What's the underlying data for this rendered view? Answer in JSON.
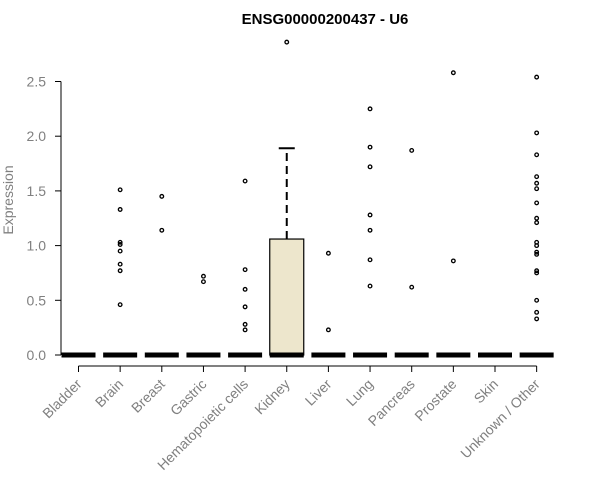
{
  "chart_data": {
    "type": "boxplot",
    "title": "ENSG00000200437 - U6",
    "xlabel": "",
    "ylabel": "Expression",
    "ylim": [
      0,
      2.75
    ],
    "yticks": [
      "0.0",
      "0.5",
      "1.0",
      "1.5",
      "2.0",
      "2.5"
    ],
    "ytick_values": [
      0.0,
      0.5,
      1.0,
      1.5,
      2.0,
      2.5
    ],
    "box_fill": "#ede6cc",
    "categories": [
      "Bladder",
      "Brain",
      "Breast",
      "Gastric",
      "Hematopoietic cells",
      "Kidney",
      "Liver",
      "Lung",
      "Pancreas",
      "Prostate",
      "Skin",
      "Unknown / Other"
    ],
    "boxes": [
      {
        "category": "Bladder",
        "q1": 0,
        "median": 0,
        "q3": 0,
        "whisker_low": 0,
        "whisker_high": 0
      },
      {
        "category": "Brain",
        "q1": 0,
        "median": 0,
        "q3": 0,
        "whisker_low": 0,
        "whisker_high": 0
      },
      {
        "category": "Breast",
        "q1": 0,
        "median": 0,
        "q3": 0,
        "whisker_low": 0,
        "whisker_high": 0
      },
      {
        "category": "Gastric",
        "q1": 0,
        "median": 0,
        "q3": 0,
        "whisker_low": 0,
        "whisker_high": 0
      },
      {
        "category": "Hematopoietic cells",
        "q1": 0,
        "median": 0,
        "q3": 0,
        "whisker_low": 0,
        "whisker_high": 0
      },
      {
        "category": "Kidney",
        "q1": 0,
        "median": 0,
        "q3": 1.06,
        "whisker_low": 0,
        "whisker_high": 1.89
      },
      {
        "category": "Liver",
        "q1": 0,
        "median": 0,
        "q3": 0,
        "whisker_low": 0,
        "whisker_high": 0
      },
      {
        "category": "Lung",
        "q1": 0,
        "median": 0,
        "q3": 0,
        "whisker_low": 0,
        "whisker_high": 0
      },
      {
        "category": "Pancreas",
        "q1": 0,
        "median": 0,
        "q3": 0,
        "whisker_low": 0,
        "whisker_high": 0
      },
      {
        "category": "Prostate",
        "q1": 0,
        "median": 0,
        "q3": 0,
        "whisker_low": 0,
        "whisker_high": 0
      },
      {
        "category": "Skin",
        "q1": 0,
        "median": 0,
        "q3": 0,
        "whisker_low": 0,
        "whisker_high": 0
      },
      {
        "category": "Unknown / Other",
        "q1": 0,
        "median": 0,
        "q3": 0,
        "whisker_low": 0,
        "whisker_high": 0
      }
    ],
    "outliers": [
      {
        "category": "Brain",
        "values": [
          1.51,
          1.33,
          1.03,
          1.01,
          0.95,
          0.83,
          0.77,
          0.46
        ]
      },
      {
        "category": "Breast",
        "values": [
          1.45,
          1.14
        ]
      },
      {
        "category": "Gastric",
        "values": [
          0.72,
          0.67
        ]
      },
      {
        "category": "Hematopoietic cells",
        "values": [
          1.59,
          0.78,
          0.6,
          0.44,
          0.28,
          0.23
        ]
      },
      {
        "category": "Kidney",
        "values": [
          2.86
        ]
      },
      {
        "category": "Liver",
        "values": [
          0.93,
          0.23
        ]
      },
      {
        "category": "Lung",
        "values": [
          2.25,
          1.9,
          1.72,
          1.28,
          1.14,
          0.87,
          0.63
        ]
      },
      {
        "category": "Pancreas",
        "values": [
          1.87,
          0.62
        ]
      },
      {
        "category": "Prostate",
        "values": [
          2.58,
          0.86
        ]
      },
      {
        "category": "Unknown / Other",
        "values": [
          2.54,
          2.03,
          1.83,
          1.63,
          1.57,
          1.52,
          1.39,
          1.25,
          1.21,
          1.03,
          1.0,
          0.94,
          0.92,
          0.77,
          0.75,
          0.5,
          0.39,
          0.33
        ]
      }
    ]
  }
}
